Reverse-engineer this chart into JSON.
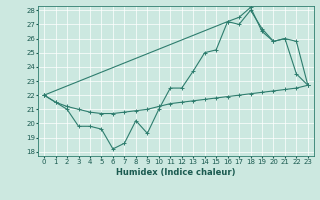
{
  "xlabel": "Humidex (Indice chaleur)",
  "xlim": [
    -0.5,
    23.5
  ],
  "ylim": [
    17.7,
    28.3
  ],
  "yticks": [
    18,
    19,
    20,
    21,
    22,
    23,
    24,
    25,
    26,
    27,
    28
  ],
  "xticks": [
    0,
    1,
    2,
    3,
    4,
    5,
    6,
    7,
    8,
    9,
    10,
    11,
    12,
    13,
    14,
    15,
    16,
    17,
    18,
    19,
    20,
    21,
    22,
    23
  ],
  "bg_color": "#cce8e0",
  "line_color": "#2e7d6e",
  "line1_x": [
    0,
    1,
    2,
    3,
    4,
    5,
    6,
    7,
    8,
    9,
    10,
    11,
    12,
    13,
    14,
    15,
    16,
    17,
    18,
    19,
    20,
    21,
    22,
    23
  ],
  "line1_y": [
    22.0,
    21.5,
    21.0,
    19.8,
    19.8,
    19.6,
    18.2,
    18.6,
    20.2,
    19.3,
    21.0,
    22.5,
    22.5,
    23.7,
    25.0,
    25.2,
    27.2,
    27.0,
    28.0,
    26.7,
    25.8,
    26.0,
    23.5,
    22.7
  ],
  "line2_x": [
    0,
    16,
    17,
    18,
    19,
    20,
    21,
    22,
    23
  ],
  "line2_y": [
    22.0,
    27.2,
    27.5,
    28.2,
    26.5,
    25.8,
    26.0,
    25.8,
    22.7
  ],
  "line3_x": [
    0,
    1,
    2,
    3,
    4,
    5,
    6,
    7,
    8,
    9,
    10,
    11,
    12,
    13,
    14,
    15,
    16,
    17,
    18,
    19,
    20,
    21,
    22,
    23
  ],
  "line3_y": [
    22.0,
    21.5,
    21.2,
    21.0,
    20.8,
    20.7,
    20.7,
    20.8,
    20.9,
    21.0,
    21.2,
    21.4,
    21.5,
    21.6,
    21.7,
    21.8,
    21.9,
    22.0,
    22.1,
    22.2,
    22.3,
    22.4,
    22.5,
    22.7
  ]
}
